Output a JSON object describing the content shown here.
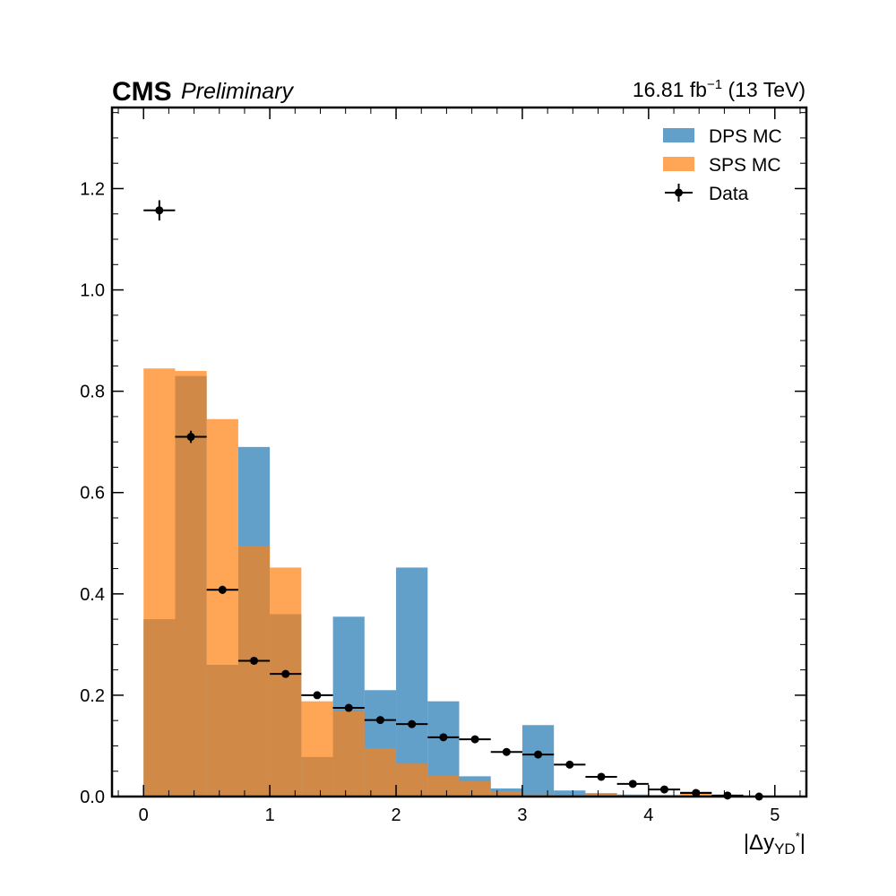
{
  "header": {
    "experiment": "CMS",
    "status": "Preliminary",
    "lumi_value": "16.81 fb",
    "lumi_exponent": "−1",
    "energy": "(13 TeV)"
  },
  "chart_data": {
    "type": "bar",
    "title": "",
    "xlabel": "|Δy_YD*|",
    "xlabel_parts": {
      "bar": "|",
      "delta": "Δ",
      "var": "y",
      "subscript": "YD",
      "superscript": "*",
      "close": "|"
    },
    "ylabel": "",
    "xlim": [
      -0.25,
      5.25
    ],
    "ylim": [
      0,
      1.36
    ],
    "x_ticks": [
      0,
      1,
      2,
      3,
      4,
      5
    ],
    "x_tick_labels": [
      "0",
      "1",
      "2",
      "3",
      "4",
      "5"
    ],
    "y_ticks": [
      0.0,
      0.2,
      0.4,
      0.6,
      0.8,
      1.0,
      1.2
    ],
    "y_tick_labels": [
      "0.0",
      "0.2",
      "0.4",
      "0.6",
      "0.8",
      "1.0",
      "1.2"
    ],
    "grid": false,
    "legend_position": "top-right",
    "bin_edges": [
      0.0,
      0.25,
      0.5,
      0.75,
      1.0,
      1.25,
      1.5,
      1.75,
      2.0,
      2.25,
      2.5,
      2.75,
      3.0,
      3.25,
      3.5,
      3.75,
      4.0,
      4.25,
      4.5,
      4.75,
      5.0
    ],
    "series": [
      {
        "name": "DPS MC",
        "kind": "histogram",
        "color": "#1f77b4",
        "values": [
          0.35,
          0.83,
          0.26,
          0.69,
          0.36,
          0.078,
          0.355,
          0.21,
          0.452,
          0.188,
          0.04,
          0.016,
          0.141,
          0.012,
          0.006,
          0.004,
          0.003,
          0.002,
          0.001,
          0.0
        ]
      },
      {
        "name": "SPS MC",
        "kind": "histogram",
        "color": "#ff7f0e",
        "values": [
          0.845,
          0.84,
          0.745,
          0.495,
          0.452,
          0.188,
          0.168,
          0.095,
          0.065,
          0.042,
          0.03,
          0.01,
          0.004,
          0.002,
          0.007,
          0.001,
          0.0,
          0.01,
          0.0,
          0.0
        ]
      },
      {
        "name": "Data",
        "kind": "errorbar",
        "color": "#000000",
        "x": [
          0.125,
          0.375,
          0.625,
          0.875,
          1.125,
          1.375,
          1.625,
          1.875,
          2.125,
          2.375,
          2.625,
          2.875,
          3.125,
          3.375,
          3.625,
          3.875,
          4.125,
          4.375,
          4.625,
          4.875
        ],
        "values": [
          1.157,
          0.71,
          0.408,
          0.268,
          0.242,
          0.2,
          0.175,
          0.151,
          0.143,
          0.117,
          0.113,
          0.088,
          0.083,
          0.063,
          0.039,
          0.025,
          0.014,
          0.007,
          0.002,
          0.0
        ],
        "yerr": [
          0.02,
          0.012,
          0.008,
          0.006,
          0.005,
          0.004,
          0.004,
          0.003,
          0.003,
          0.003,
          0.003,
          0.002,
          0.002,
          0.002,
          0.002,
          0.001,
          0.001,
          0.001,
          0.001,
          0.001
        ],
        "xerr": 0.125
      }
    ]
  }
}
